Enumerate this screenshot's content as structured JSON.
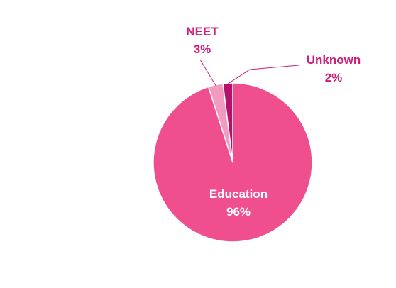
{
  "chart_data": {
    "type": "pie",
    "title": "",
    "legend": "none",
    "slices": [
      {
        "label": "Education",
        "value": 96,
        "value_label": "96%",
        "color": "#ef4f8f",
        "label_color": "#ffffff"
      },
      {
        "label": "NEET",
        "value": 3,
        "value_label": "3%",
        "color": "#f39ac0",
        "label_color": "#d01c7a"
      },
      {
        "label": "Unknown",
        "value": 2,
        "value_label": "2%",
        "color": "#b5116a",
        "label_color": "#d01c7a"
      }
    ],
    "slice_border_color": "#ffffff"
  }
}
